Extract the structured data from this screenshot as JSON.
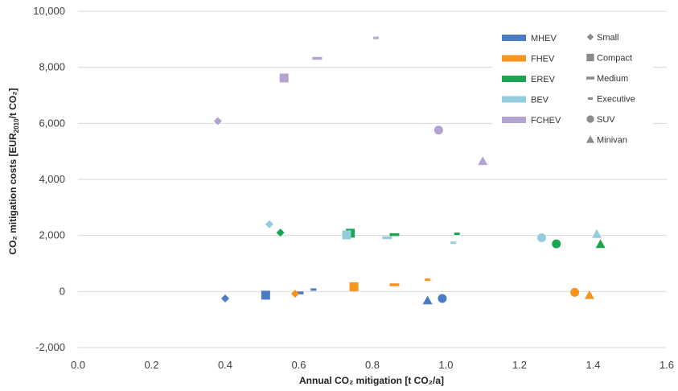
{
  "chart_data": {
    "type": "scatter",
    "xlabel": "Annual CO₂ mitigation [t CO₂/a]",
    "ylabel_parts": [
      "CO₂ mitigation costs [EUR",
      "2010",
      "/t CO₂]"
    ],
    "xlim": [
      0.0,
      1.6
    ],
    "ylim": [
      -2000,
      10000
    ],
    "x_ticks": [
      0.0,
      0.2,
      0.4,
      0.6,
      0.8,
      1.0,
      1.2,
      1.4,
      1.6
    ],
    "y_ticks": [
      -2000,
      0,
      2000,
      4000,
      6000,
      8000,
      10000
    ],
    "grid": "horizontal",
    "legend_position": "top-right",
    "powertrains": [
      {
        "name": "MHEV",
        "color": "#4a7bc4"
      },
      {
        "name": "FHEV",
        "color": "#f7941d"
      },
      {
        "name": "EREV",
        "color": "#1aa551"
      },
      {
        "name": "BEV",
        "color": "#93cddd"
      },
      {
        "name": "FCHEV",
        "color": "#b4a2d3"
      }
    ],
    "segments": [
      {
        "name": "Small",
        "marker": "diamond"
      },
      {
        "name": "Compact",
        "marker": "square"
      },
      {
        "name": "Medium",
        "marker": "dash"
      },
      {
        "name": "Executive",
        "marker": "short-dash"
      },
      {
        "name": "SUV",
        "marker": "circle"
      },
      {
        "name": "Minivan",
        "marker": "triangle"
      }
    ],
    "points": [
      {
        "powertrain": "MHEV",
        "segment": "Small",
        "x": 0.4,
        "y": -250
      },
      {
        "powertrain": "MHEV",
        "segment": "Compact",
        "x": 0.51,
        "y": -130
      },
      {
        "powertrain": "MHEV",
        "segment": "Medium",
        "x": 0.6,
        "y": -50
      },
      {
        "powertrain": "MHEV",
        "segment": "Executive",
        "x": 0.64,
        "y": 70
      },
      {
        "powertrain": "MHEV",
        "segment": "SUV",
        "x": 0.99,
        "y": -250
      },
      {
        "powertrain": "MHEV",
        "segment": "Minivan",
        "x": 0.95,
        "y": -320
      },
      {
        "powertrain": "FHEV",
        "segment": "Small",
        "x": 0.59,
        "y": -80
      },
      {
        "powertrain": "FHEV",
        "segment": "Compact",
        "x": 0.75,
        "y": 170
      },
      {
        "powertrain": "FHEV",
        "segment": "Medium",
        "x": 0.86,
        "y": 240
      },
      {
        "powertrain": "FHEV",
        "segment": "Executive",
        "x": 0.95,
        "y": 420
      },
      {
        "powertrain": "FHEV",
        "segment": "SUV",
        "x": 1.35,
        "y": -30
      },
      {
        "powertrain": "FHEV",
        "segment": "Minivan",
        "x": 1.39,
        "y": -130
      },
      {
        "powertrain": "EREV",
        "segment": "Small",
        "x": 0.55,
        "y": 2100
      },
      {
        "powertrain": "EREV",
        "segment": "Compact",
        "x": 0.74,
        "y": 2080
      },
      {
        "powertrain": "EREV",
        "segment": "Medium",
        "x": 0.86,
        "y": 2030
      },
      {
        "powertrain": "EREV",
        "segment": "Executive",
        "x": 1.03,
        "y": 2060
      },
      {
        "powertrain": "EREV",
        "segment": "SUV",
        "x": 1.3,
        "y": 1700
      },
      {
        "powertrain": "EREV",
        "segment": "Minivan",
        "x": 1.42,
        "y": 1690
      },
      {
        "powertrain": "BEV",
        "segment": "Small",
        "x": 0.52,
        "y": 2400
      },
      {
        "powertrain": "BEV",
        "segment": "Compact",
        "x": 0.73,
        "y": 2020
      },
      {
        "powertrain": "BEV",
        "segment": "Medium",
        "x": 0.84,
        "y": 1920
      },
      {
        "powertrain": "BEV",
        "segment": "Executive",
        "x": 1.02,
        "y": 1740
      },
      {
        "powertrain": "BEV",
        "segment": "SUV",
        "x": 1.26,
        "y": 1920
      },
      {
        "powertrain": "BEV",
        "segment": "Minivan",
        "x": 1.41,
        "y": 2050
      },
      {
        "powertrain": "FCHEV",
        "segment": "Small",
        "x": 0.38,
        "y": 6080
      },
      {
        "powertrain": "FCHEV",
        "segment": "Compact",
        "x": 0.56,
        "y": 7620
      },
      {
        "powertrain": "FCHEV",
        "segment": "Medium",
        "x": 0.65,
        "y": 8320
      },
      {
        "powertrain": "FCHEV",
        "segment": "Executive",
        "x": 0.81,
        "y": 9050
      },
      {
        "powertrain": "FCHEV",
        "segment": "SUV",
        "x": 0.98,
        "y": 5760
      },
      {
        "powertrain": "FCHEV",
        "segment": "Minivan",
        "x": 1.1,
        "y": 4650
      }
    ]
  }
}
